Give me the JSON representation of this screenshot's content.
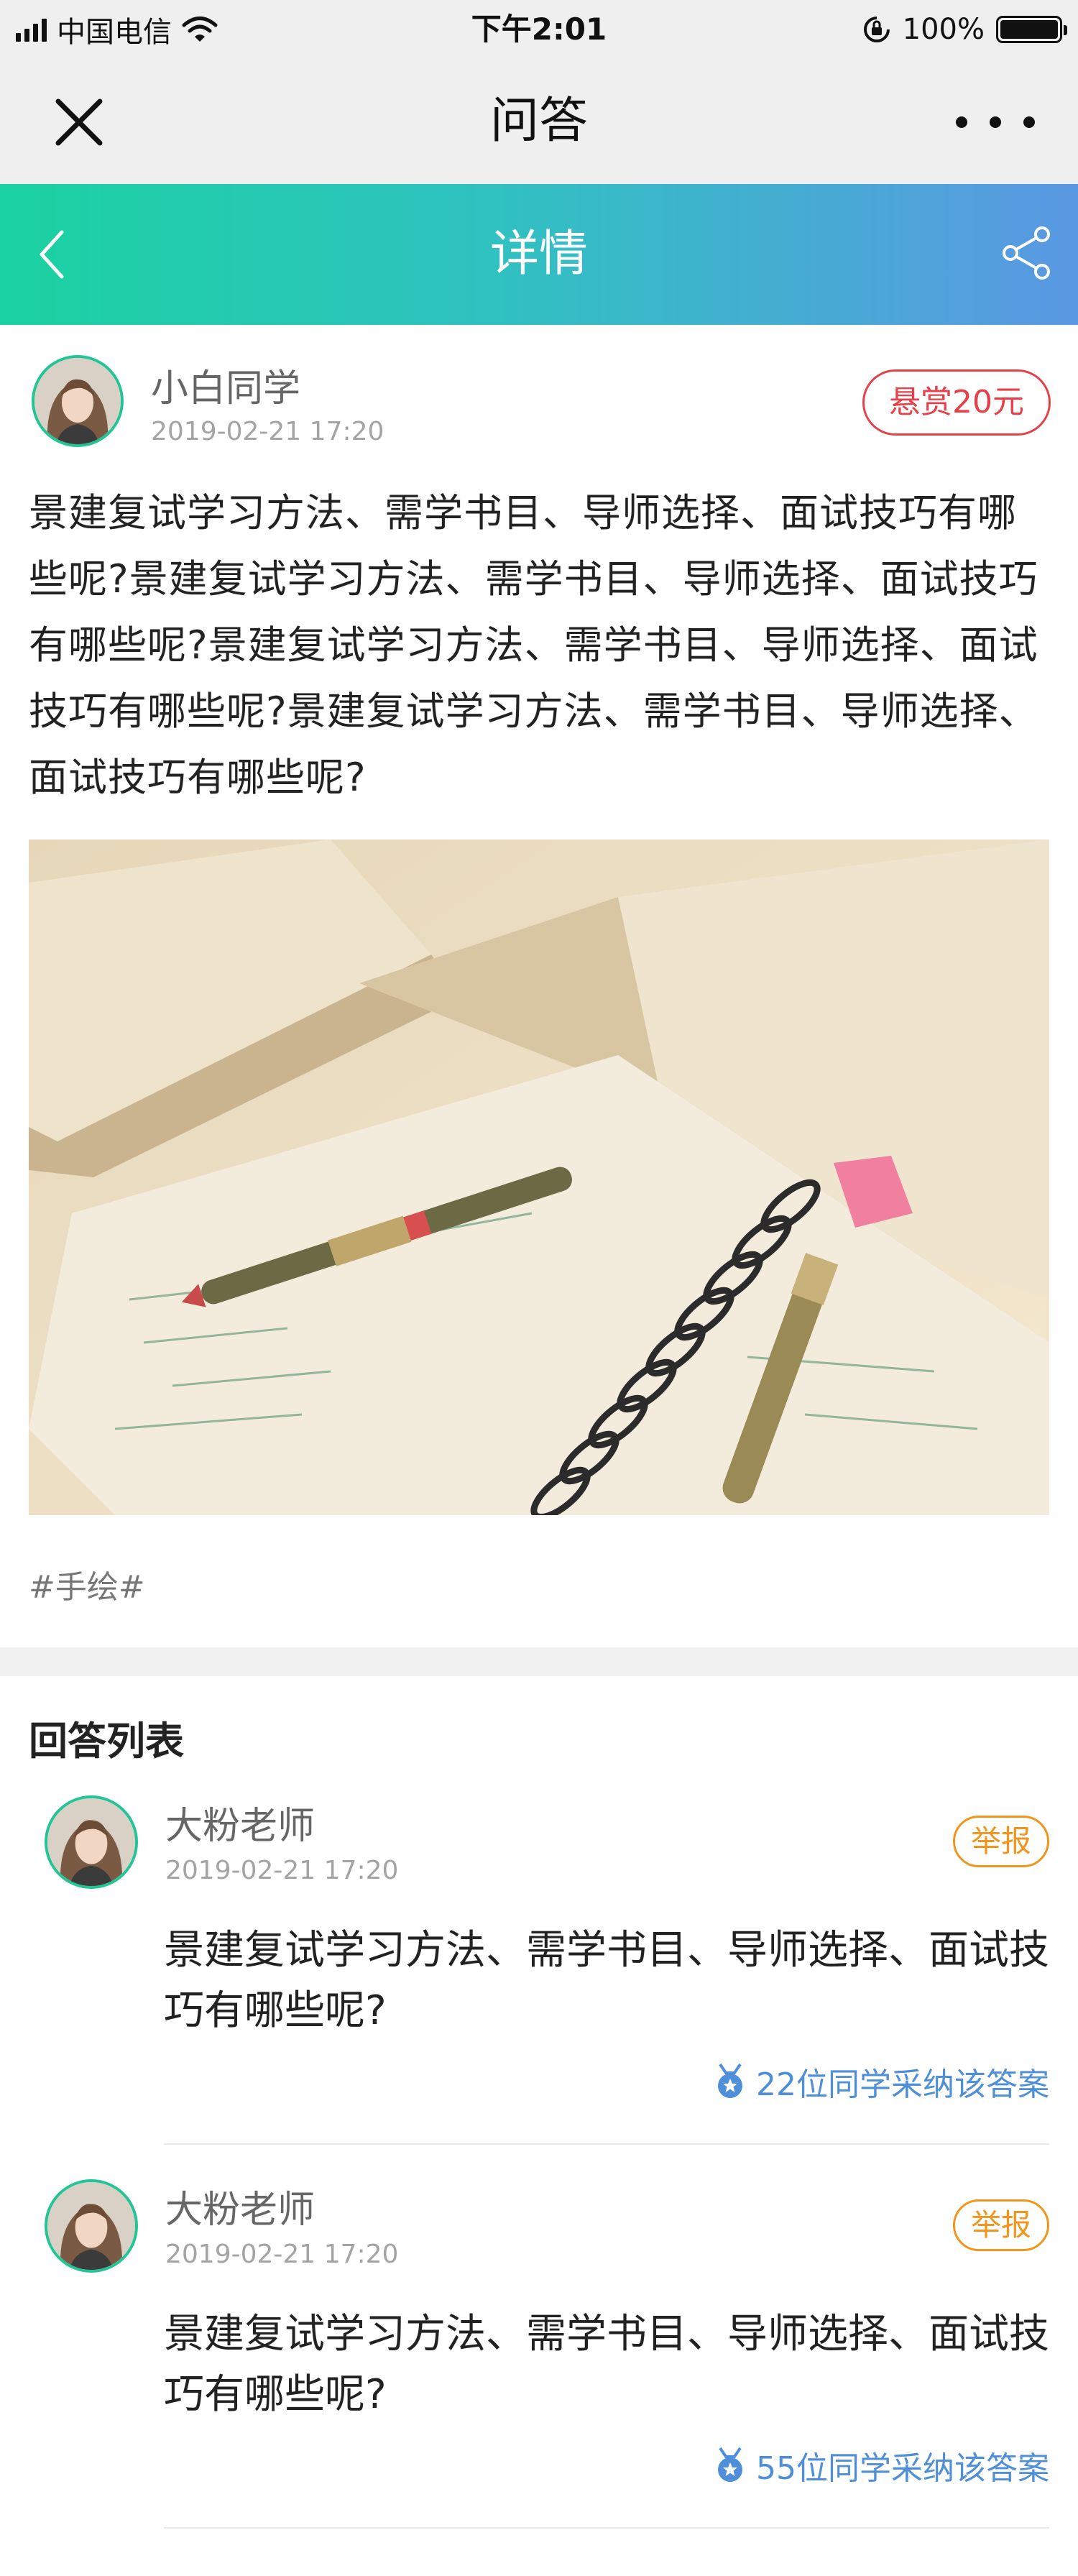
{
  "status_bar": {
    "carrier": "中国电信",
    "time": "下午2:01",
    "battery": "100%",
    "battery_level": 1.0
  },
  "title_bar": {
    "title": "问答",
    "close_icon": "close-icon",
    "more_icon": "more-icon"
  },
  "header": {
    "title": "详情",
    "back_icon": "back-icon",
    "share_icon": "share-icon",
    "gradient_start": "#1bd2a1",
    "gradient_end": "#5a98e3"
  },
  "question": {
    "author": "小白同学",
    "time": "2019-02-21 17:20",
    "reward": "悬赏20元",
    "text": "景建复试学习方法、需学书目、导师选择、面试技巧有哪些呢?景建复试学习方法、需学书目、导师选择、面试技巧有哪些呢?景建复试学习方法、需学书目、导师选择、面试技巧有哪些呢?景建复试学习方法、需学书目、导师选择、面试技巧有哪些呢?",
    "tag": "#手绘#"
  },
  "answers_title": "回答列表",
  "answers": [
    {
      "author": "大粉老师",
      "time": "2019-02-21 17:20",
      "report": "举报",
      "text": "景建复试学习方法、需学书目、导师选择、面试技巧有哪些呢?",
      "adopt": "22位同学采纳该答案"
    },
    {
      "author": "大粉老师",
      "time": "2019-02-21 17:20",
      "report": "举报",
      "text": "景建复试学习方法、需学书目、导师选择、面试技巧有哪些呢?",
      "adopt": "55位同学采纳该答案"
    }
  ],
  "colors": {
    "accent_green": "#23c596",
    "reward_red": "#e5414b",
    "report_orange": "#f0961e",
    "link_blue": "#4f8fd9"
  }
}
